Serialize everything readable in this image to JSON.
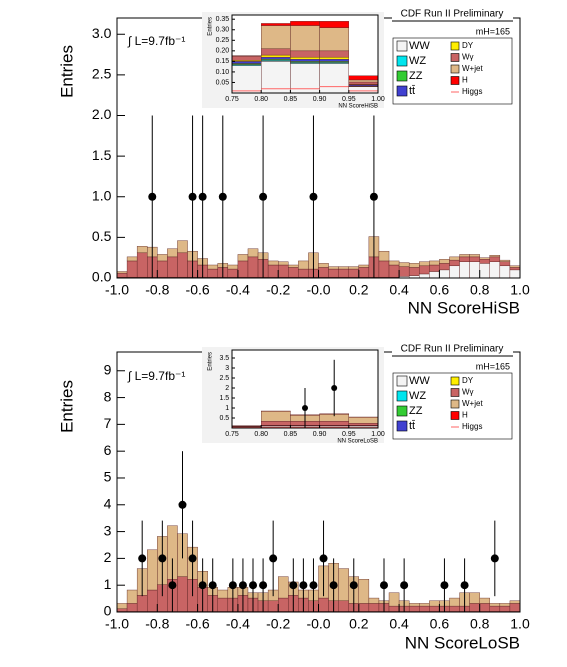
{
  "chart_data": [
    {
      "type": "histogram",
      "title": "CDF Run II Preliminary",
      "xlabel": "NN ScoreHiSB",
      "ylabel": "Entries",
      "lumi": "∫ L=9.7fb⁻¹",
      "mass": "mH=165",
      "xlim": [
        -1.0,
        1.0
      ],
      "ylim": [
        0,
        3.2
      ],
      "xticks": [
        {
          "value": -1.0,
          "label": "-1.0"
        },
        {
          "value": -0.8,
          "label": "-0.8"
        },
        {
          "value": -0.6,
          "label": "-0.6"
        },
        {
          "value": -0.4,
          "label": "-0.4"
        },
        {
          "value": -0.2,
          "label": "-0.2"
        },
        {
          "value": 0,
          "label": "-0.0"
        },
        0.2,
        0.4,
        0.6,
        0.8,
        {
          "value": 1.0,
          "label": "1.0"
        }
      ],
      "yticks": [
        {
          "value": 0,
          "label": "0.0"
        },
        0.5,
        {
          "value": 1.0,
          "label": "1.0"
        },
        1.5,
        {
          "value": 2.0,
          "label": "2.0"
        },
        2.5,
        {
          "value": 3.0,
          "label": "3.0"
        }
      ],
      "bins": [
        -1,
        -0.95,
        -0.9,
        -0.85,
        -0.8,
        -0.75,
        -0.7,
        -0.65,
        -0.6,
        -0.55,
        -0.5,
        -0.45,
        -0.4,
        -0.35,
        -0.3,
        -0.25,
        -0.2,
        -0.15,
        -0.1,
        -0.05,
        0,
        0.05,
        0.1,
        0.15,
        0.2,
        0.25,
        0.3,
        0.35,
        0.4,
        0.45,
        0.5,
        0.55,
        0.6,
        0.65,
        0.7,
        0.75,
        0.8,
        0.85,
        0.9,
        0.95,
        1
      ],
      "series": [
        {
          "name": "WW",
          "color": "#f4f4f4",
          "values": [
            0.01,
            0.01,
            0.01,
            0.01,
            0.01,
            0.01,
            0.01,
            0.01,
            0.01,
            0.01,
            0.01,
            0.01,
            0.01,
            0.01,
            0.01,
            0.01,
            0.01,
            0.01,
            0.01,
            0.01,
            0.01,
            0.01,
            0.01,
            0.01,
            0.01,
            0.01,
            0.01,
            0.01,
            0.02,
            0.03,
            0.05,
            0.08,
            0.1,
            0.15,
            0.2,
            0.2,
            0.18,
            0.2,
            0.15,
            0.1
          ]
        },
        {
          "name": "Wγ",
          "color": "#c86464",
          "values": [
            0.05,
            0.2,
            0.3,
            0.25,
            0.2,
            0.25,
            0.3,
            0.2,
            0.15,
            0.1,
            0.12,
            0.1,
            0.2,
            0.25,
            0.22,
            0.15,
            0.15,
            0.12,
            0.1,
            0.1,
            0.12,
            0.1,
            0.1,
            0.1,
            0.12,
            0.25,
            0.2,
            0.15,
            0.12,
            0.1,
            0.1,
            0.08,
            0.08,
            0.07,
            0.06,
            0.06,
            0.05,
            0.06,
            0.05,
            0.03
          ]
        },
        {
          "name": "W+jet",
          "color": "#deb887",
          "values": [
            0.02,
            0.05,
            0.08,
            0.12,
            0.08,
            0.1,
            0.15,
            0.12,
            0.08,
            0.05,
            0.05,
            0.05,
            0.08,
            0.1,
            0.08,
            0.05,
            0.04,
            0.03,
            0.1,
            0.2,
            0.05,
            0.03,
            0.03,
            0.03,
            0.03,
            0.25,
            0.12,
            0.05,
            0.05,
            0.05,
            0.05,
            0.05,
            0.05,
            0.04,
            0.03,
            0.03,
            0.02,
            0.02,
            0.02,
            0.02
          ]
        }
      ],
      "data": {
        "x": [
          -0.825,
          -0.625,
          -0.575,
          -0.475,
          -0.275,
          -0.025,
          0.275
        ],
        "values": [
          1,
          1,
          1,
          1,
          1,
          1,
          1
        ],
        "errors": [
          1,
          1,
          1,
          1,
          1,
          1,
          1
        ]
      },
      "inset": {
        "xlabel": "NN ScoreHiSB",
        "ylabel": "Entries",
        "xlim": [
          0.75,
          1.0
        ],
        "ylim": [
          0,
          0.37
        ],
        "xticks": [
          0.75,
          {
            "value": 0.8,
            "label": "0.80"
          },
          0.85,
          {
            "value": 0.9,
            "label": "0.90"
          },
          0.95,
          {
            "value": 1.0,
            "label": "1.00"
          }
        ],
        "yticks": [
          0.05,
          {
            "value": 0.1,
            "label": "0.10"
          },
          0.15,
          {
            "value": 0.2,
            "label": "0.20"
          },
          0.25,
          {
            "value": 0.3,
            "label": "0.30"
          },
          0.35
        ],
        "bins": [
          0.75,
          0.8,
          0.85,
          0.9,
          0.95,
          1.0
        ],
        "series": [
          {
            "name": "WW",
            "color": "#f4f4f4",
            "values": [
              0.13,
              0.15,
              0.14,
              0.14,
              0.03
            ]
          },
          {
            "name": "WZ",
            "color": "#00e5ee",
            "values": [
              0.005,
              0.005,
              0.005,
              0.005,
              0.002
            ]
          },
          {
            "name": "ZZ",
            "color": "#33cc33",
            "values": [
              0.005,
              0.005,
              0.005,
              0.005,
              0.002
            ]
          },
          {
            "name": "tt̄",
            "color": "#4040d0",
            "values": [
              0.01,
              0.01,
              0.01,
              0.01,
              0.005
            ]
          },
          {
            "name": "DY",
            "color": "#ffee00",
            "values": [
              0.005,
              0.01,
              0.01,
              0.01,
              0.003
            ]
          },
          {
            "name": "Wγ",
            "color": "#c86464",
            "values": [
              0.02,
              0.03,
              0.03,
              0.03,
              0.01
            ]
          },
          {
            "name": "W+jet",
            "color": "#deb887",
            "values": [
              0.001,
              0.11,
              0.12,
              0.11,
              0.01
            ]
          },
          {
            "name": "H",
            "color": "#ff0000",
            "values": [
              0.001,
              0.01,
              0.02,
              0.03,
              0.02
            ]
          },
          {
            "name": "Higgs",
            "color": "#ff6666",
            "style": "line",
            "values": [
              0.01,
              0.02,
              0.02,
              0.03,
              0.01
            ]
          }
        ]
      }
    },
    {
      "type": "histogram",
      "title": "CDF Run II Preliminary",
      "xlabel": "NN ScoreLoSB",
      "ylabel": "Entries",
      "lumi": "∫ L=9.7fb⁻¹",
      "mass": "mH=165",
      "xlim": [
        -1.0,
        1.0
      ],
      "ylim": [
        0,
        9.7
      ],
      "xticks": [
        {
          "value": -1.0,
          "label": "-1.0"
        },
        {
          "value": -0.8,
          "label": "-0.8"
        },
        {
          "value": -0.6,
          "label": "-0.6"
        },
        {
          "value": -0.4,
          "label": "-0.4"
        },
        {
          "value": -0.2,
          "label": "-0.2"
        },
        {
          "value": 0,
          "label": "-0.0"
        },
        0.2,
        0.4,
        0.6,
        0.8,
        {
          "value": 1.0,
          "label": "1.0"
        }
      ],
      "yticks": [
        0,
        1,
        2,
        3,
        4,
        5,
        6,
        7,
        8,
        9
      ],
      "bins": [
        -1,
        -0.95,
        -0.9,
        -0.85,
        -0.8,
        -0.75,
        -0.7,
        -0.65,
        -0.6,
        -0.55,
        -0.5,
        -0.45,
        -0.4,
        -0.35,
        -0.3,
        -0.25,
        -0.2,
        -0.15,
        -0.1,
        -0.05,
        0,
        0.05,
        0.1,
        0.15,
        0.2,
        0.25,
        0.3,
        0.35,
        0.4,
        0.45,
        0.5,
        0.55,
        0.6,
        0.65,
        0.7,
        0.75,
        0.8,
        0.85,
        0.9,
        0.95,
        1
      ],
      "series": [
        {
          "name": "WW",
          "color": "#f4f4f4",
          "values": [
            0.02,
            0.02,
            0.02,
            0.02,
            0.02,
            0.02,
            0.02,
            0.02,
            0.02,
            0.02,
            0.02,
            0.02,
            0.02,
            0.02,
            0.02,
            0.02,
            0.02,
            0.02,
            0.02,
            0.02,
            0.02,
            0.02,
            0.02,
            0.02,
            0.02,
            0.02,
            0.02,
            0.02,
            0.02,
            0.02,
            0.02,
            0.02,
            0.02,
            0.02,
            0.02,
            0.02,
            0.02,
            0.02,
            0.02,
            0.02
          ]
        },
        {
          "name": "Wγ",
          "color": "#c86464",
          "values": [
            0.1,
            0.3,
            0.6,
            0.8,
            1.0,
            1.2,
            1.3,
            1.2,
            0.9,
            0.6,
            0.5,
            0.5,
            0.6,
            0.5,
            0.4,
            0.4,
            0.5,
            0.6,
            0.5,
            0.4,
            0.5,
            0.4,
            0.4,
            0.3,
            0.3,
            0.3,
            0.3,
            0.2,
            0.2,
            0.2,
            0.2,
            0.2,
            0.2,
            0.2,
            0.2,
            0.3,
            0.3,
            0.2,
            0.2,
            0.3
          ]
        },
        {
          "name": "W+jet",
          "color": "#deb887",
          "values": [
            0.2,
            0.5,
            1.0,
            1.5,
            1.8,
            2.0,
            1.6,
            1.2,
            0.6,
            0.3,
            0.3,
            0.4,
            0.3,
            0.2,
            0.3,
            0.4,
            0.8,
            0.5,
            0.3,
            0.4,
            1.2,
            1.4,
            1.2,
            1.0,
            0.9,
            0.2,
            0.1,
            0.5,
            0.2,
            0.1,
            0.1,
            0.2,
            0.2,
            0.3,
            0.5,
            0.4,
            0.2,
            0.1,
            0.1,
            0.1
          ]
        }
      ],
      "data": {
        "x": [
          -0.875,
          -0.775,
          -0.725,
          -0.675,
          -0.625,
          -0.575,
          -0.525,
          -0.425,
          -0.375,
          -0.325,
          -0.275,
          -0.225,
          -0.125,
          -0.075,
          -0.025,
          0.025,
          0.075,
          0.175,
          0.325,
          0.425,
          0.625,
          0.725,
          0.875
        ],
        "values": [
          2,
          2,
          1,
          4,
          2,
          1,
          1,
          1,
          1,
          1,
          1,
          2,
          1,
          1,
          1,
          2,
          1,
          1,
          1,
          1,
          1,
          1,
          2
        ],
        "errors": [
          1.41,
          1.41,
          1,
          2,
          1.41,
          1,
          1,
          1,
          1,
          1,
          1,
          1.41,
          1,
          1,
          1,
          1.41,
          1,
          1,
          1,
          1,
          1,
          1,
          1.41
        ]
      },
      "inset": {
        "xlabel": "NN ScoreLoSB",
        "ylabel": "Entries",
        "xlim": [
          0.75,
          1.0
        ],
        "ylim": [
          0,
          3.9
        ],
        "xticks": [
          0.75,
          {
            "value": 0.8,
            "label": "0.80"
          },
          0.85,
          {
            "value": 0.9,
            "label": "0.90"
          },
          0.95,
          {
            "value": 1.0,
            "label": "1.00"
          }
        ],
        "yticks": [
          0.5,
          1,
          1.5,
          2,
          2.5,
          3,
          3.5
        ],
        "bins": [
          0.75,
          0.8,
          0.85,
          0.9,
          0.95,
          1.0
        ],
        "series": [
          {
            "name": "WW",
            "color": "#f4f4f4",
            "values": [
              0.02,
              0.1,
              0.1,
              0.1,
              0.1
            ]
          },
          {
            "name": "WZ",
            "color": "#00e5ee",
            "values": [
              0.01,
              0.01,
              0.01,
              0.01,
              0.01
            ]
          },
          {
            "name": "ZZ",
            "color": "#33cc33",
            "values": [
              0.01,
              0.01,
              0.01,
              0.01,
              0.01
            ]
          },
          {
            "name": "tt̄",
            "color": "#4040d0",
            "values": [
              0.01,
              0.01,
              0.01,
              0.01,
              0.01
            ]
          },
          {
            "name": "DY",
            "color": "#ffee00",
            "values": [
              0.01,
              0.01,
              0.01,
              0.01,
              0.01
            ]
          },
          {
            "name": "Wγ",
            "color": "#c86464",
            "values": [
              0.02,
              0.2,
              0.2,
              0.2,
              0.1
            ]
          },
          {
            "name": "W+jet",
            "color": "#deb887",
            "values": [
              0.02,
              0.5,
              0.3,
              0.35,
              0.3
            ]
          },
          {
            "name": "H",
            "color": "#ff0000",
            "values": [
              0.01,
              0.01,
              0.02,
              0.02,
              0.01
            ]
          },
          {
            "name": "Higgs",
            "color": "#ff6666",
            "style": "line",
            "values": [
              0.02,
              0.03,
              0.03,
              0.03,
              0.02
            ]
          }
        ],
        "data": {
          "x": [
            0.875,
            0.925
          ],
          "values": [
            1,
            2
          ],
          "errors": [
            1,
            1.41
          ]
        }
      }
    }
  ]
}
